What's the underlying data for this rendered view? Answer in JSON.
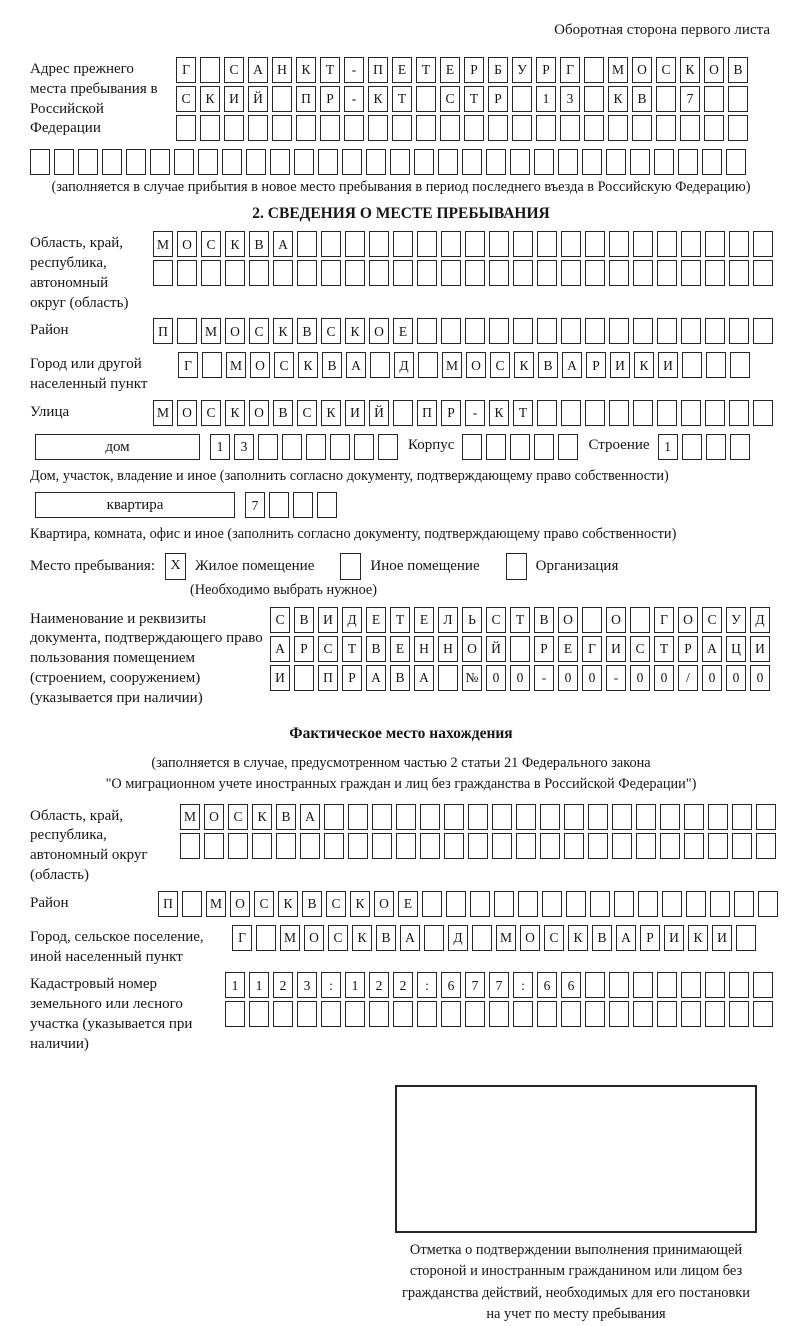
{
  "colors": {
    "ink": "#151515",
    "paper": "#ffffff"
  },
  "page": {
    "header_note": "Оборотная сторона первого листа"
  },
  "prev_address": {
    "label": "Адрес прежнего места пребывания в Российской Федерации",
    "rows": [
      "Г САНКТ-ПЕТЕРБУРГ МОСКОВ",
      "СКИЙ ПР-КТ СТР 13 КВ 7  ",
      "                        ",
      "                              "
    ],
    "note": "(заполняется в случае прибытия в новое место пребывания в период последнего въезда в Российскую Федерацию)"
  },
  "section2": {
    "title": "2. СВЕДЕНИЯ О МЕСТЕ ПРЕБЫВАНИЯ",
    "region": {
      "label": "Область, край, республика, автономный округ (область)",
      "rows": [
        "МОСКВА                    ",
        "                          "
      ]
    },
    "district": {
      "label": "Район",
      "row": "П МОСКВСКОЕ               "
    },
    "city": {
      "label": "Город или другой населенный пункт",
      "row": "Г МОСКВА Д МОСКВАРИКИ   "
    },
    "street": {
      "label": "Улица",
      "row": "МОСКОВСКИЙ ПР-КТ          "
    },
    "house": {
      "box_label": "дом",
      "cells": "13      ",
      "korpus_label": "Корпус",
      "korpus_cells": "     ",
      "stroenie_label": "Строение",
      "stroenie_cells": "1   ",
      "note": "Дом, участок, владение и иное (заполнить согласно документу, подтверждающему право собственности)"
    },
    "apartment": {
      "box_label": "квартира",
      "cells": "7   ",
      "note": "Квартира, комната, офис и иное (заполнить согласно документу, подтверждающему право собственности)"
    },
    "stay_type": {
      "label": "Место пребывания:",
      "options": [
        {
          "label": "Жилое помещение",
          "mark": "X"
        },
        {
          "label": "Иное помещение",
          "mark": ""
        },
        {
          "label": "Организация",
          "mark": ""
        }
      ],
      "note": "(Необходимо выбрать нужное)"
    },
    "document": {
      "label": "Наименование и реквизиты документа, подтверждающего право пользования помещением (строением, сооружением) (указывается при наличии)",
      "rows": [
        "СВИДЕТЕЛЬСТВО О ГОСУД",
        "АРСТВЕННОЙ РЕГИСТРАЦИ",
        "И ПРАВА №00-00-00/000"
      ]
    }
  },
  "actual_location": {
    "title": "Фактическое место нахождения",
    "note_line1": "(заполняется в случае, предусмотренном частью 2 статьи 21 Федерального закона",
    "note_line2": "\"О миграционном учете иностранных граждан и лиц без гражданства в Российской Федерации\")",
    "region": {
      "label": "Область, край, республика, автономный округ (область)",
      "rows": [
        "МОСКВА                   ",
        "                         "
      ]
    },
    "district": {
      "label": "Район",
      "row": "П МОСКВСКОЕ               "
    },
    "city": {
      "label": "Город, сельское поселение, иной населенный пункт",
      "row": "Г МОСКВА Д МОСКВАРИКИ "
    },
    "cadastral": {
      "label": "Кадастровый номер земельного или лесного участка (указывается при наличии)",
      "rows": [
        "1123:122:677:66        ",
        "                       "
      ]
    },
    "stamp_note": "Отметка о подтверждении выполнения принимающей стороной и иностранным гражданином или лицом без гражданства действий, необходимых для его постановки на учет по месту пребывания"
  }
}
